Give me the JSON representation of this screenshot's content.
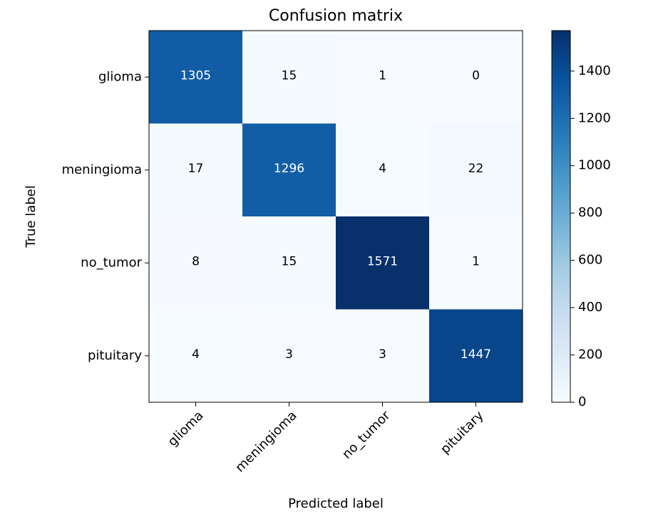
{
  "chart_data": {
    "type": "heatmap",
    "title": "Confusion matrix",
    "xlabel": "Predicted label",
    "ylabel": "True label",
    "row_labels": [
      "glioma",
      "meningioma",
      "no_tumor",
      "pituitary"
    ],
    "col_labels": [
      "glioma",
      "meningioma",
      "no_tumor",
      "pituitary"
    ],
    "values": [
      [
        1305,
        15,
        1,
        0
      ],
      [
        17,
        1296,
        4,
        22
      ],
      [
        8,
        15,
        1571,
        1
      ],
      [
        4,
        3,
        3,
        1447
      ]
    ],
    "colormap": "Blues",
    "color_range": [
      0,
      1571
    ],
    "colorbar_ticks": [
      0,
      200,
      400,
      600,
      800,
      1000,
      1200,
      1400
    ],
    "grid": false
  }
}
